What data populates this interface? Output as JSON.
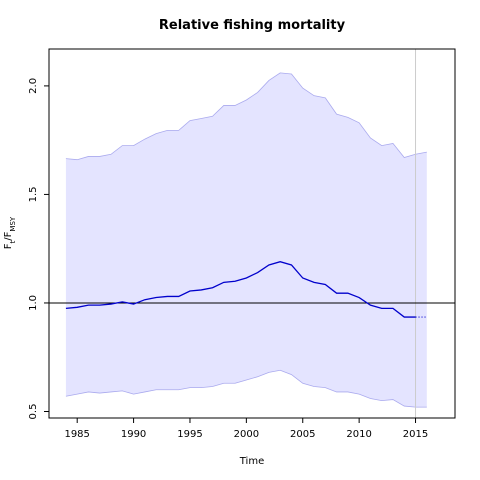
{
  "chart_data": {
    "type": "line",
    "title": "Relative fishing mortality",
    "xlabel": "Time",
    "ylabel": {
      "main": "F",
      "sub1": "t",
      "slash": "/F",
      "sub2": "MSY"
    },
    "xlim": [
      1982.5,
      2018.5
    ],
    "ylim": [
      0.47,
      2.17
    ],
    "xticks": [
      1985,
      1990,
      1995,
      2000,
      2005,
      2010,
      2015
    ],
    "yticks": [
      "0.5",
      "1.0",
      "1.5",
      "2.0"
    ],
    "reference_line": 1.0,
    "vertical_marker": 2015,
    "colors": {
      "line": "#0000cc",
      "band_fill": "#e4e4ff",
      "band_edge": "#aaaaee",
      "reference": "#000000",
      "marker": "#cccccc"
    },
    "series": [
      {
        "role": "estimate",
        "x": [
          1984,
          1985,
          1986,
          1987,
          1988,
          1989,
          1990,
          1991,
          1992,
          1993,
          1994,
          1995,
          1996,
          1997,
          1998,
          1999,
          2000,
          2001,
          2002,
          2003,
          2004,
          2005,
          2006,
          2007,
          2008,
          2009,
          2010,
          2011,
          2012,
          2013,
          2014,
          2015
        ],
        "values": [
          0.975,
          0.98,
          0.99,
          0.99,
          0.995,
          1.005,
          0.995,
          1.015,
          1.025,
          1.03,
          1.03,
          1.055,
          1.06,
          1.07,
          1.095,
          1.1,
          1.115,
          1.14,
          1.175,
          1.19,
          1.175,
          1.115,
          1.095,
          1.085,
          1.045,
          1.045,
          1.025,
          0.99,
          0.975,
          0.975,
          0.935,
          0.935
        ]
      },
      {
        "role": "projection",
        "x": [
          2015,
          2016
        ],
        "values": [
          0.935,
          0.935
        ]
      },
      {
        "role": "upper",
        "x": [
          1984,
          1985,
          1986,
          1987,
          1988,
          1989,
          1990,
          1991,
          1992,
          1993,
          1994,
          1995,
          1996,
          1997,
          1998,
          1999,
          2000,
          2001,
          2002,
          2003,
          2004,
          2005,
          2006,
          2007,
          2008,
          2009,
          2010,
          2011,
          2012,
          2013,
          2014,
          2015,
          2016
        ],
        "values": [
          1.665,
          1.66,
          1.675,
          1.675,
          1.685,
          1.725,
          1.725,
          1.755,
          1.78,
          1.795,
          1.795,
          1.84,
          1.85,
          1.86,
          1.91,
          1.91,
          1.935,
          1.97,
          2.025,
          2.06,
          2.055,
          1.99,
          1.955,
          1.945,
          1.87,
          1.855,
          1.83,
          1.76,
          1.725,
          1.735,
          1.67,
          1.685,
          1.695
        ]
      },
      {
        "role": "lower",
        "x": [
          1984,
          1985,
          1986,
          1987,
          1988,
          1989,
          1990,
          1991,
          1992,
          1993,
          1994,
          1995,
          1996,
          1997,
          1998,
          1999,
          2000,
          2001,
          2002,
          2003,
          2004,
          2005,
          2006,
          2007,
          2008,
          2009,
          2010,
          2011,
          2012,
          2013,
          2014,
          2015,
          2016
        ],
        "values": [
          0.57,
          0.58,
          0.59,
          0.585,
          0.59,
          0.595,
          0.58,
          0.59,
          0.6,
          0.6,
          0.6,
          0.61,
          0.61,
          0.615,
          0.63,
          0.63,
          0.645,
          0.66,
          0.68,
          0.69,
          0.67,
          0.63,
          0.615,
          0.61,
          0.59,
          0.59,
          0.58,
          0.56,
          0.55,
          0.555,
          0.525,
          0.52,
          0.52
        ]
      }
    ]
  }
}
